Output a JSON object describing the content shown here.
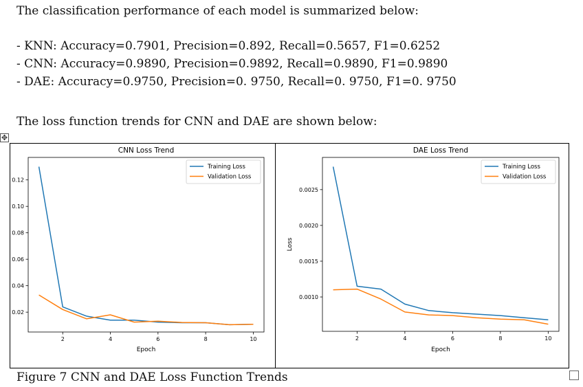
{
  "intro": "The classification performance of each model is summarized below:",
  "metrics": [
    "- KNN: Accuracy=0.7901, Precision=0.892, Recall=0.5657, F1=0.6252",
    "- CNN: Accuracy=0.9890, Precision=0.9892, Recall=0.9890, F1=0.9890",
    "- DAE: Accuracy=0.9750, Precision=0. 9750, Recall=0. 9750, F1=0. 9750"
  ],
  "loss_intro": "The loss function trends for CNN and DAE are shown below:",
  "caption": "Figure 7 CNN and DAE Loss Function Trends",
  "icons": {
    "move": "move-handle-icon",
    "resize": "resize-handle-icon"
  },
  "colors": {
    "training": "#1f77b4",
    "validation": "#ff7f0e"
  },
  "chart_data": [
    {
      "type": "line",
      "title": "CNN Loss Trend",
      "xlabel": "Epoch",
      "ylabel": "",
      "x": [
        1,
        2,
        3,
        4,
        5,
        6,
        7,
        8,
        9,
        10
      ],
      "x_ticks": [
        "2",
        "4",
        "6",
        "8",
        "10"
      ],
      "y_ticks": [
        "0.02",
        "0.04",
        "0.06",
        "0.08",
        "0.10",
        "0.12"
      ],
      "ylim": [
        0.005,
        0.137
      ],
      "xlim": [
        0.55,
        10.45
      ],
      "legend_position": "top-right",
      "series": [
        {
          "name": "Training Loss",
          "values": [
            0.13,
            0.024,
            0.017,
            0.014,
            0.014,
            0.0125,
            0.012,
            0.012,
            0.0105,
            0.0108
          ]
        },
        {
          "name": "Validation Loss",
          "values": [
            0.033,
            0.022,
            0.015,
            0.018,
            0.0125,
            0.0132,
            0.0122,
            0.012,
            0.0105,
            0.0108
          ]
        }
      ]
    },
    {
      "type": "line",
      "title": "DAE Loss Trend",
      "xlabel": "Epoch",
      "ylabel": "Loss",
      "x": [
        1,
        2,
        3,
        4,
        5,
        6,
        7,
        8,
        9,
        10
      ],
      "x_ticks": [
        "2",
        "4",
        "6",
        "8",
        "10"
      ],
      "y_ticks": [
        "0.0010",
        "0.0015",
        "0.0020",
        "0.0025"
      ],
      "ylim": [
        0.00052,
        0.00295
      ],
      "xlim": [
        0.55,
        10.45
      ],
      "legend_position": "top-right",
      "series": [
        {
          "name": "Training Loss",
          "values": [
            0.00282,
            0.00115,
            0.00111,
            0.0009,
            0.00081,
            0.00078,
            0.00076,
            0.00074,
            0.00071,
            0.00068
          ]
        },
        {
          "name": "Validation Loss",
          "values": [
            0.0011,
            0.00111,
            0.00097,
            0.00079,
            0.00075,
            0.00074,
            0.00071,
            0.00069,
            0.00068,
            0.00062
          ]
        }
      ]
    }
  ]
}
